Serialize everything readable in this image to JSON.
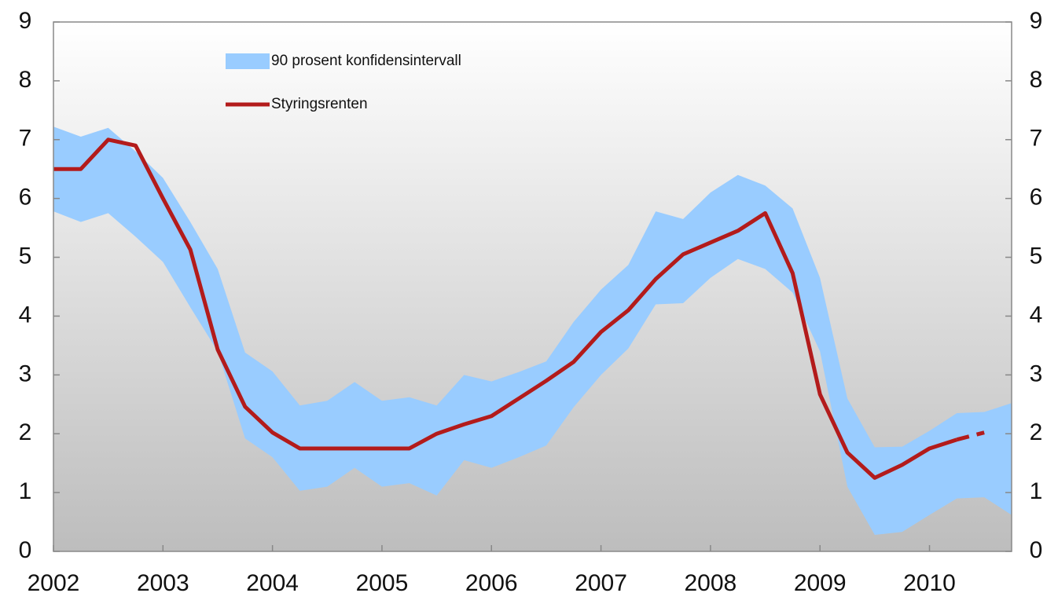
{
  "chart_data": {
    "type": "line",
    "xlim": [
      2002,
      2010.75
    ],
    "xticks": [
      2002,
      2003,
      2004,
      2005,
      2006,
      2007,
      2008,
      2009,
      2010
    ],
    "ylim": [
      0,
      9
    ],
    "yticks": [
      0,
      1,
      2,
      3,
      4,
      5,
      6,
      7,
      8,
      9
    ],
    "y2lim": [
      0,
      9
    ],
    "y2ticks": [
      0,
      1,
      2,
      3,
      4,
      5,
      6,
      7,
      8,
      9
    ],
    "legend": "top-left",
    "series": [
      {
        "name": "90 prosent konfidensintervall",
        "type": "band",
        "color": "#99ccff",
        "x": [
          2002,
          2002.25,
          2002.5,
          2002.75,
          2003,
          2003.25,
          2003.5,
          2003.75,
          2004,
          2004.25,
          2004.5,
          2004.75,
          2005,
          2005.25,
          2005.5,
          2005.75,
          2006,
          2006.25,
          2006.5,
          2006.75,
          2007,
          2007.25,
          2007.5,
          2007.75,
          2008,
          2008.25,
          2008.5,
          2008.75,
          2009,
          2009.25,
          2009.5,
          2009.75,
          2010,
          2010.25,
          2010.5,
          2010.75
        ],
        "upper": [
          7.22,
          7.05,
          7.2,
          6.8,
          6.35,
          5.6,
          4.8,
          3.38,
          3.06,
          2.48,
          2.56,
          2.88,
          2.56,
          2.62,
          2.48,
          3.0,
          2.89,
          3.05,
          3.23,
          3.9,
          4.45,
          4.87,
          5.78,
          5.65,
          6.1,
          6.4,
          6.22,
          5.83,
          4.65,
          2.6,
          1.77,
          1.78,
          2.05,
          2.35,
          2.37,
          2.52
        ],
        "lower": [
          5.78,
          5.6,
          5.75,
          5.35,
          4.92,
          4.15,
          3.4,
          1.92,
          1.6,
          1.03,
          1.1,
          1.42,
          1.1,
          1.16,
          0.95,
          1.55,
          1.42,
          1.6,
          1.8,
          2.45,
          3.0,
          3.45,
          4.2,
          4.22,
          4.65,
          4.97,
          4.8,
          4.4,
          3.4,
          1.1,
          0.28,
          0.33,
          0.62,
          0.9,
          0.92,
          0.62
        ]
      },
      {
        "name": "Styringsrenten",
        "type": "line",
        "color": "#b31b1b",
        "dash_from": 2010.25,
        "x": [
          2002,
          2002.25,
          2002.5,
          2002.75,
          2003,
          2003.25,
          2003.5,
          2003.75,
          2004,
          2004.25,
          2004.5,
          2004.75,
          2005,
          2005.25,
          2005.5,
          2005.75,
          2006,
          2006.25,
          2006.5,
          2006.75,
          2007,
          2007.25,
          2007.5,
          2007.75,
          2008,
          2008.25,
          2008.5,
          2008.75,
          2009,
          2009.25,
          2009.5,
          2009.75,
          2010,
          2010.25,
          2010.5
        ],
        "values": [
          6.5,
          6.5,
          7.0,
          6.9,
          6.0,
          5.13,
          3.43,
          2.46,
          2.02,
          1.75,
          1.75,
          1.75,
          1.75,
          1.75,
          2.0,
          2.16,
          2.3,
          2.6,
          2.9,
          3.22,
          3.73,
          4.1,
          4.63,
          5.05,
          5.25,
          5.45,
          5.75,
          4.73,
          2.67,
          1.68,
          1.25,
          1.47,
          1.75,
          1.9,
          2.02
        ]
      }
    ]
  }
}
